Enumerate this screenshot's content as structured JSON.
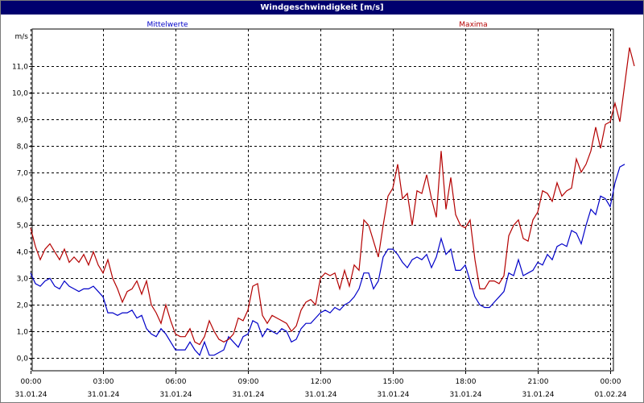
{
  "window": {
    "title": "Windgeschwindigkeit [m/s]"
  },
  "colors": {
    "title_bg": "#00006e",
    "mean": "#0000c8",
    "max": "#b40000",
    "grid": "#000000"
  },
  "chart_data": {
    "type": "line",
    "title": "Windgeschwindigkeit [m/s]",
    "ylabel": "m/s",
    "ylim": [
      -0.5,
      12.0
    ],
    "yticks": [
      0,
      1,
      2,
      3,
      4,
      5,
      6,
      7,
      8,
      9,
      10,
      11
    ],
    "ytick_labels": [
      "0,0",
      "1,0",
      "2,0",
      "3,0",
      "4,0",
      "5,0",
      "6,0",
      "7,0",
      "8,0",
      "9,0",
      "10,0",
      "11,0"
    ],
    "x_hours_range": [
      0,
      24
    ],
    "xticks": [
      {
        "time": "00:00",
        "date": "31.01.24"
      },
      {
        "time": "03:00",
        "date": "31.01.24"
      },
      {
        "time": "06:00",
        "date": "31.01.24"
      },
      {
        "time": "09:00",
        "date": "31.01.24"
      },
      {
        "time": "12:00",
        "date": "31.01.24"
      },
      {
        "time": "15:00",
        "date": "31.01.24"
      },
      {
        "time": "18:00",
        "date": "31.01.24"
      },
      {
        "time": "21:00",
        "date": "31.01.24"
      },
      {
        "time": "00:00",
        "date": "01.02.24"
      }
    ],
    "grid": true,
    "series": [
      {
        "name": "Mittelwerte",
        "color": "#0000c8",
        "points": [
          [
            0.0,
            3.2
          ],
          [
            0.2,
            2.8
          ],
          [
            0.4,
            2.7
          ],
          [
            0.6,
            2.9
          ],
          [
            0.8,
            3.0
          ],
          [
            1.0,
            2.7
          ],
          [
            1.2,
            2.6
          ],
          [
            1.4,
            2.9
          ],
          [
            1.6,
            2.7
          ],
          [
            1.8,
            2.6
          ],
          [
            2.0,
            2.5
          ],
          [
            2.2,
            2.6
          ],
          [
            2.4,
            2.6
          ],
          [
            2.6,
            2.7
          ],
          [
            2.8,
            2.5
          ],
          [
            3.0,
            2.3
          ],
          [
            3.2,
            1.7
          ],
          [
            3.4,
            1.7
          ],
          [
            3.6,
            1.6
          ],
          [
            3.8,
            1.7
          ],
          [
            4.0,
            1.7
          ],
          [
            4.2,
            1.8
          ],
          [
            4.4,
            1.5
          ],
          [
            4.6,
            1.6
          ],
          [
            4.8,
            1.1
          ],
          [
            5.0,
            0.9
          ],
          [
            5.2,
            0.8
          ],
          [
            5.4,
            1.1
          ],
          [
            5.6,
            0.9
          ],
          [
            5.8,
            0.6
          ],
          [
            6.0,
            0.3
          ],
          [
            6.2,
            0.3
          ],
          [
            6.4,
            0.3
          ],
          [
            6.6,
            0.6
          ],
          [
            6.8,
            0.3
          ],
          [
            7.0,
            0.1
          ],
          [
            7.2,
            0.6
          ],
          [
            7.4,
            0.1
          ],
          [
            7.6,
            0.1
          ],
          [
            7.8,
            0.2
          ],
          [
            8.0,
            0.3
          ],
          [
            8.2,
            0.8
          ],
          [
            8.4,
            0.6
          ],
          [
            8.6,
            0.4
          ],
          [
            8.8,
            0.8
          ],
          [
            9.0,
            0.9
          ],
          [
            9.2,
            1.4
          ],
          [
            9.4,
            1.3
          ],
          [
            9.6,
            0.8
          ],
          [
            9.8,
            1.1
          ],
          [
            10.0,
            1.0
          ],
          [
            10.2,
            0.9
          ],
          [
            10.4,
            1.1
          ],
          [
            10.6,
            1.0
          ],
          [
            10.8,
            0.6
          ],
          [
            11.0,
            0.7
          ],
          [
            11.2,
            1.1
          ],
          [
            11.4,
            1.3
          ],
          [
            11.6,
            1.3
          ],
          [
            11.8,
            1.5
          ],
          [
            12.0,
            1.7
          ],
          [
            12.2,
            1.8
          ],
          [
            12.4,
            1.7
          ],
          [
            12.6,
            1.9
          ],
          [
            12.8,
            1.8
          ],
          [
            13.0,
            2.0
          ],
          [
            13.2,
            2.1
          ],
          [
            13.4,
            2.3
          ],
          [
            13.6,
            2.6
          ],
          [
            13.8,
            3.2
          ],
          [
            14.0,
            3.2
          ],
          [
            14.2,
            2.6
          ],
          [
            14.4,
            2.9
          ],
          [
            14.6,
            3.8
          ],
          [
            14.8,
            4.1
          ],
          [
            15.0,
            4.1
          ],
          [
            15.2,
            3.9
          ],
          [
            15.4,
            3.6
          ],
          [
            15.6,
            3.4
          ],
          [
            15.8,
            3.7
          ],
          [
            16.0,
            3.8
          ],
          [
            16.2,
            3.7
          ],
          [
            16.4,
            3.9
          ],
          [
            16.6,
            3.4
          ],
          [
            16.8,
            3.8
          ],
          [
            17.0,
            4.5
          ],
          [
            17.2,
            3.9
          ],
          [
            17.4,
            4.1
          ],
          [
            17.6,
            3.3
          ],
          [
            17.8,
            3.3
          ],
          [
            18.0,
            3.5
          ],
          [
            18.2,
            2.9
          ],
          [
            18.4,
            2.3
          ],
          [
            18.6,
            2.0
          ],
          [
            18.8,
            1.9
          ],
          [
            19.0,
            1.9
          ],
          [
            19.2,
            2.1
          ],
          [
            19.4,
            2.3
          ],
          [
            19.6,
            2.5
          ],
          [
            19.8,
            3.2
          ],
          [
            20.0,
            3.1
          ],
          [
            20.2,
            3.7
          ],
          [
            20.4,
            3.1
          ],
          [
            20.6,
            3.2
          ],
          [
            20.8,
            3.3
          ],
          [
            21.0,
            3.6
          ],
          [
            21.2,
            3.5
          ],
          [
            21.4,
            3.9
          ],
          [
            21.6,
            3.7
          ],
          [
            21.8,
            4.2
          ],
          [
            22.0,
            4.3
          ],
          [
            22.2,
            4.2
          ],
          [
            22.4,
            4.8
          ],
          [
            22.6,
            4.7
          ],
          [
            22.8,
            4.3
          ],
          [
            23.0,
            5.0
          ],
          [
            23.2,
            5.6
          ],
          [
            23.4,
            5.4
          ],
          [
            23.6,
            6.1
          ],
          [
            23.8,
            6.0
          ],
          [
            24.0,
            5.7
          ],
          [
            24.2,
            6.6
          ],
          [
            24.4,
            7.2
          ],
          [
            24.6,
            7.3
          ]
        ]
      },
      {
        "name": "Maxima",
        "color": "#b40000",
        "points": [
          [
            0.0,
            4.9
          ],
          [
            0.2,
            4.2
          ],
          [
            0.4,
            3.7
          ],
          [
            0.6,
            4.1
          ],
          [
            0.8,
            4.3
          ],
          [
            1.0,
            4.0
          ],
          [
            1.2,
            3.7
          ],
          [
            1.4,
            4.1
          ],
          [
            1.6,
            3.6
          ],
          [
            1.8,
            3.8
          ],
          [
            2.0,
            3.6
          ],
          [
            2.2,
            3.9
          ],
          [
            2.4,
            3.5
          ],
          [
            2.6,
            4.0
          ],
          [
            2.8,
            3.5
          ],
          [
            3.0,
            3.2
          ],
          [
            3.2,
            3.7
          ],
          [
            3.4,
            3.0
          ],
          [
            3.6,
            2.6
          ],
          [
            3.8,
            2.1
          ],
          [
            4.0,
            2.5
          ],
          [
            4.2,
            2.6
          ],
          [
            4.4,
            2.9
          ],
          [
            4.6,
            2.4
          ],
          [
            4.8,
            2.9
          ],
          [
            5.0,
            2.0
          ],
          [
            5.2,
            1.7
          ],
          [
            5.4,
            1.3
          ],
          [
            5.6,
            2.0
          ],
          [
            5.8,
            1.4
          ],
          [
            6.0,
            0.9
          ],
          [
            6.2,
            0.8
          ],
          [
            6.4,
            0.8
          ],
          [
            6.6,
            1.1
          ],
          [
            6.8,
            0.6
          ],
          [
            7.0,
            0.5
          ],
          [
            7.2,
            0.8
          ],
          [
            7.4,
            1.4
          ],
          [
            7.6,
            1.0
          ],
          [
            7.8,
            0.7
          ],
          [
            8.0,
            0.6
          ],
          [
            8.2,
            0.7
          ],
          [
            8.4,
            0.9
          ],
          [
            8.6,
            1.5
          ],
          [
            8.8,
            1.4
          ],
          [
            9.0,
            1.8
          ],
          [
            9.2,
            2.7
          ],
          [
            9.4,
            2.8
          ],
          [
            9.6,
            1.6
          ],
          [
            9.8,
            1.3
          ],
          [
            10.0,
            1.6
          ],
          [
            10.2,
            1.5
          ],
          [
            10.4,
            1.4
          ],
          [
            10.6,
            1.3
          ],
          [
            10.8,
            1.0
          ],
          [
            11.0,
            1.2
          ],
          [
            11.2,
            1.8
          ],
          [
            11.4,
            2.1
          ],
          [
            11.6,
            2.2
          ],
          [
            11.8,
            2.0
          ],
          [
            12.0,
            3.0
          ],
          [
            12.2,
            3.2
          ],
          [
            12.4,
            3.1
          ],
          [
            12.6,
            3.2
          ],
          [
            12.8,
            2.6
          ],
          [
            13.0,
            3.3
          ],
          [
            13.2,
            2.7
          ],
          [
            13.4,
            3.5
          ],
          [
            13.6,
            3.3
          ],
          [
            13.8,
            5.2
          ],
          [
            14.0,
            5.0
          ],
          [
            14.2,
            4.4
          ],
          [
            14.4,
            3.8
          ],
          [
            14.6,
            5.0
          ],
          [
            14.8,
            6.1
          ],
          [
            15.0,
            6.4
          ],
          [
            15.2,
            7.3
          ],
          [
            15.4,
            6.0
          ],
          [
            15.6,
            6.2
          ],
          [
            15.8,
            5.0
          ],
          [
            16.0,
            6.3
          ],
          [
            16.2,
            6.2
          ],
          [
            16.4,
            6.9
          ],
          [
            16.6,
            6.0
          ],
          [
            16.8,
            5.3
          ],
          [
            17.0,
            7.8
          ],
          [
            17.2,
            5.6
          ],
          [
            17.4,
            6.8
          ],
          [
            17.6,
            5.4
          ],
          [
            17.8,
            5.0
          ],
          [
            18.0,
            4.9
          ],
          [
            18.2,
            5.2
          ],
          [
            18.4,
            3.7
          ],
          [
            18.6,
            2.6
          ],
          [
            18.8,
            2.6
          ],
          [
            19.0,
            2.9
          ],
          [
            19.2,
            2.9
          ],
          [
            19.4,
            2.8
          ],
          [
            19.6,
            3.1
          ],
          [
            19.8,
            4.6
          ],
          [
            20.0,
            5.0
          ],
          [
            20.2,
            5.2
          ],
          [
            20.4,
            4.5
          ],
          [
            20.6,
            4.4
          ],
          [
            20.8,
            5.2
          ],
          [
            21.0,
            5.5
          ],
          [
            21.2,
            6.3
          ],
          [
            21.4,
            6.2
          ],
          [
            21.6,
            5.9
          ],
          [
            21.8,
            6.6
          ],
          [
            22.0,
            6.1
          ],
          [
            22.2,
            6.3
          ],
          [
            22.4,
            6.4
          ],
          [
            22.6,
            7.5
          ],
          [
            22.8,
            7.0
          ],
          [
            23.0,
            7.3
          ],
          [
            23.2,
            7.8
          ],
          [
            23.4,
            8.7
          ],
          [
            23.6,
            7.9
          ],
          [
            23.8,
            8.8
          ],
          [
            24.0,
            8.9
          ],
          [
            24.2,
            9.6
          ],
          [
            24.4,
            8.9
          ],
          [
            24.6,
            10.3
          ],
          [
            24.8,
            11.7
          ],
          [
            25.0,
            11.0
          ]
        ]
      }
    ]
  }
}
